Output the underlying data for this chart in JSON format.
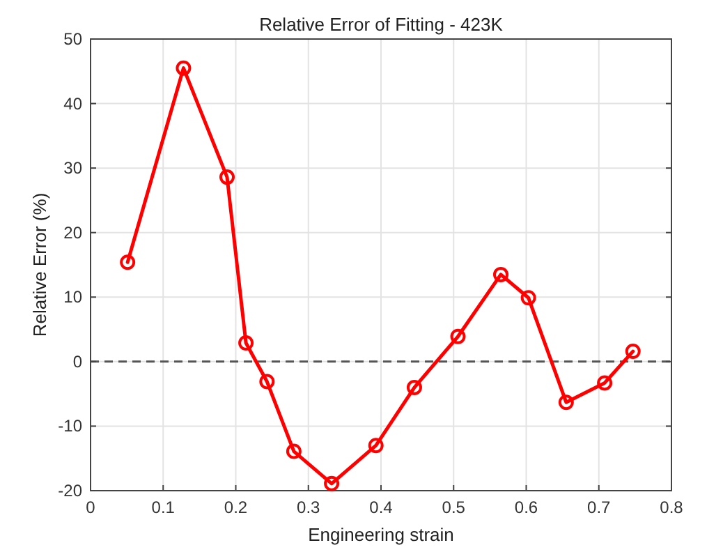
{
  "chart_data": {
    "type": "line",
    "title": "Relative Error of Fitting - 423K",
    "xlabel": "Engineering strain",
    "ylabel": "Relative Error (%)",
    "xlim": [
      0,
      0.8
    ],
    "xticks": [
      0,
      0.1,
      0.2,
      0.3,
      0.4,
      0.5,
      0.6,
      0.7,
      0.8
    ],
    "ylim": [
      -20,
      50
    ],
    "yticks": [
      -20,
      -10,
      0,
      10,
      20,
      30,
      40,
      50
    ],
    "x": [
      0.051,
      0.128,
      0.188,
      0.214,
      0.243,
      0.28,
      0.332,
      0.393,
      0.446,
      0.506,
      0.565,
      0.603,
      0.655,
      0.708,
      0.747
    ],
    "series": [
      {
        "color": "#ff0000",
        "values": [
          15.4,
          45.5,
          28.6,
          2.9,
          -3.1,
          -13.9,
          -18.9,
          -13,
          -4,
          3.9,
          13.5,
          9.9,
          -6.3,
          -3.3,
          1.6
        ]
      }
    ],
    "ref_lines": [
      {
        "axis": "y",
        "value": 0,
        "color": "#555555",
        "line_style": "dashed"
      }
    ],
    "grid": true,
    "marker": "circle",
    "line_style": "solid"
  }
}
